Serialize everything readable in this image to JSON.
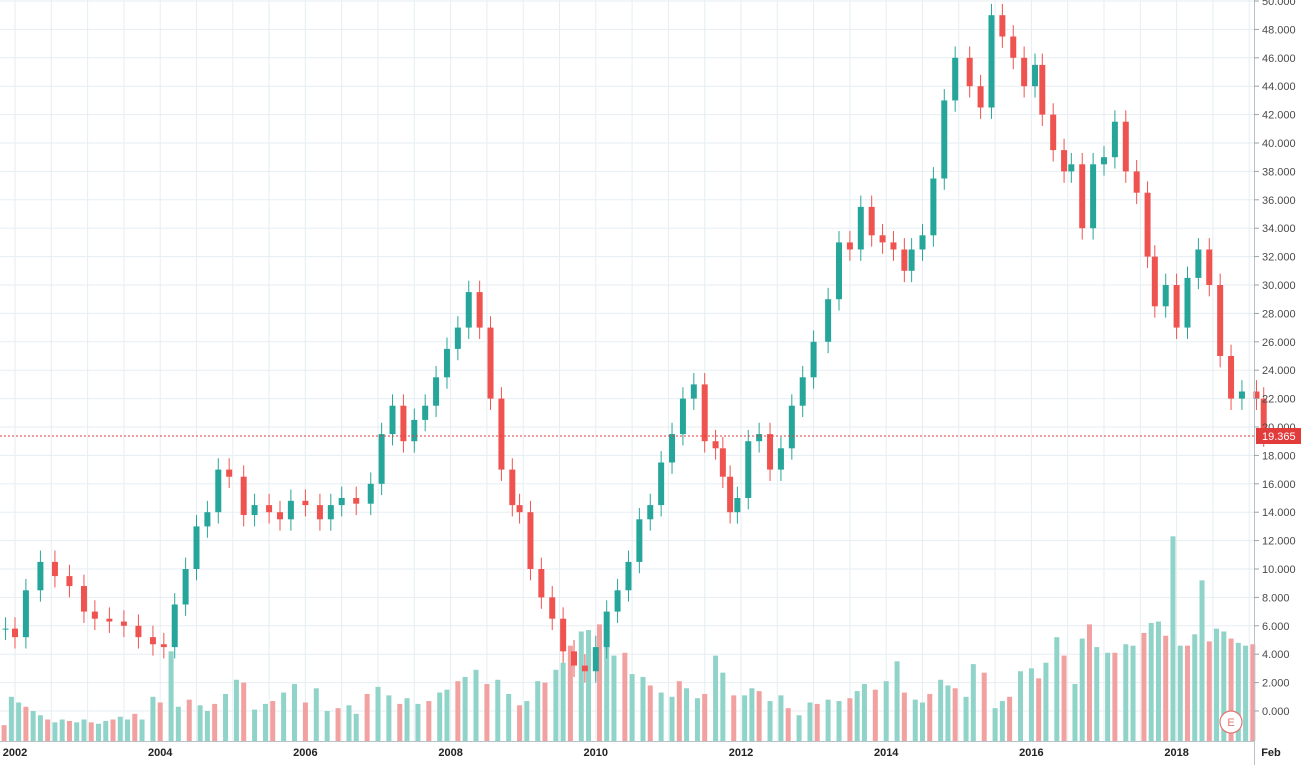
{
  "chart_data": {
    "type": "candlestick",
    "title": "",
    "interval": "monthly",
    "colors": {
      "up": "#26a69a",
      "down": "#ef5350",
      "up_volume": "#8fd3c9",
      "down_volume": "#f1a1a0",
      "grid": "#e6eef3",
      "last_price_line": "#e23b3b"
    },
    "grid": true,
    "price_axis": {
      "side": "right",
      "range": [
        0,
        50
      ],
      "ticks": [
        "0.000",
        "2.000",
        "4.000",
        "6.000",
        "8.000",
        "10.000",
        "12.000",
        "14.000",
        "16.000",
        "18.000",
        "20.000",
        "22.000",
        "24.000",
        "26.000",
        "28.000",
        "30.000",
        "32.000",
        "34.000",
        "36.000",
        "38.000",
        "40.000",
        "42.000",
        "44.000",
        "46.000",
        "48.000",
        "50.000"
      ]
    },
    "time_axis": {
      "ticks": [
        "2002",
        "2004",
        "2006",
        "2008",
        "2010",
        "2012",
        "2014",
        "2016",
        "2018",
        "Feb"
      ]
    },
    "last_price": "19.365",
    "event_marker": "E",
    "volume_overlay": true,
    "price_series": [
      [
        2001.87,
        5.8
      ],
      [
        2002.0,
        5.2
      ],
      [
        2002.15,
        8.5
      ],
      [
        2002.35,
        10.5
      ],
      [
        2002.55,
        9.5
      ],
      [
        2002.75,
        8.8
      ],
      [
        2002.95,
        7.0
      ],
      [
        2003.1,
        6.5
      ],
      [
        2003.3,
        6.3
      ],
      [
        2003.5,
        6.0
      ],
      [
        2003.7,
        5.2
      ],
      [
        2003.9,
        4.7
      ],
      [
        2004.05,
        4.5
      ],
      [
        2004.2,
        7.5
      ],
      [
        2004.35,
        10.0
      ],
      [
        2004.5,
        13.0
      ],
      [
        2004.65,
        14.0
      ],
      [
        2004.8,
        17.0
      ],
      [
        2004.95,
        16.5
      ],
      [
        2005.15,
        13.8
      ],
      [
        2005.3,
        14.5
      ],
      [
        2005.5,
        14.0
      ],
      [
        2005.65,
        13.5
      ],
      [
        2005.8,
        14.8
      ],
      [
        2006.0,
        14.5
      ],
      [
        2006.2,
        13.5
      ],
      [
        2006.35,
        14.5
      ],
      [
        2006.5,
        15.0
      ],
      [
        2006.7,
        14.6
      ],
      [
        2006.9,
        16.0
      ],
      [
        2007.05,
        19.5
      ],
      [
        2007.2,
        21.5
      ],
      [
        2007.35,
        19.0
      ],
      [
        2007.5,
        20.5
      ],
      [
        2007.65,
        21.5
      ],
      [
        2007.8,
        23.5
      ],
      [
        2007.95,
        25.5
      ],
      [
        2008.1,
        27.0
      ],
      [
        2008.25,
        29.5
      ],
      [
        2008.4,
        27.0
      ],
      [
        2008.55,
        22.0
      ],
      [
        2008.7,
        17.0
      ],
      [
        2008.85,
        14.5
      ],
      [
        2008.95,
        14.0
      ],
      [
        2009.1,
        10.0
      ],
      [
        2009.25,
        8.0
      ],
      [
        2009.4,
        6.5
      ],
      [
        2009.55,
        4.2
      ],
      [
        2009.7,
        3.2
      ],
      [
        2009.85,
        2.8
      ],
      [
        2010.0,
        4.5
      ],
      [
        2010.15,
        7.0
      ],
      [
        2010.3,
        8.5
      ],
      [
        2010.45,
        10.5
      ],
      [
        2010.6,
        13.5
      ],
      [
        2010.75,
        14.5
      ],
      [
        2010.9,
        17.5
      ],
      [
        2011.05,
        19.5
      ],
      [
        2011.2,
        22.0
      ],
      [
        2011.35,
        23.0
      ],
      [
        2011.5,
        19.0
      ],
      [
        2011.65,
        18.5
      ],
      [
        2011.75,
        16.5
      ],
      [
        2011.85,
        14.0
      ],
      [
        2011.95,
        15.0
      ],
      [
        2012.1,
        19.0
      ],
      [
        2012.25,
        19.5
      ],
      [
        2012.4,
        17.0
      ],
      [
        2012.55,
        18.5
      ],
      [
        2012.7,
        21.5
      ],
      [
        2012.85,
        23.5
      ],
      [
        2013.0,
        26.0
      ],
      [
        2013.2,
        29.0
      ],
      [
        2013.35,
        33.0
      ],
      [
        2013.5,
        32.5
      ],
      [
        2013.65,
        35.5
      ],
      [
        2013.8,
        33.5
      ],
      [
        2013.95,
        33.0
      ],
      [
        2014.1,
        32.5
      ],
      [
        2014.25,
        31.0
      ],
      [
        2014.35,
        32.5
      ],
      [
        2014.5,
        33.5
      ],
      [
        2014.65,
        37.5
      ],
      [
        2014.8,
        43.0
      ],
      [
        2014.95,
        46.0
      ],
      [
        2015.15,
        44.0
      ],
      [
        2015.3,
        42.5
      ],
      [
        2015.45,
        49.0
      ],
      [
        2015.6,
        47.5
      ],
      [
        2015.75,
        46.0
      ],
      [
        2015.9,
        44.0
      ],
      [
        2016.05,
        45.5
      ],
      [
        2016.15,
        42.0
      ],
      [
        2016.3,
        39.5
      ],
      [
        2016.45,
        38.0
      ],
      [
        2016.55,
        38.5
      ],
      [
        2016.7,
        34.0
      ],
      [
        2016.85,
        38.5
      ],
      [
        2017.0,
        39.0
      ],
      [
        2017.15,
        41.5
      ],
      [
        2017.3,
        38.0
      ],
      [
        2017.45,
        36.5
      ],
      [
        2017.6,
        32.0
      ],
      [
        2017.7,
        28.5
      ],
      [
        2017.85,
        30.0
      ],
      [
        2018.0,
        27.0
      ],
      [
        2018.15,
        30.5
      ],
      [
        2018.3,
        32.5
      ],
      [
        2018.45,
        30.0
      ],
      [
        2018.6,
        25.0
      ],
      [
        2018.75,
        22.0
      ],
      [
        2018.9,
        22.5
      ],
      [
        2019.1,
        22.0
      ],
      [
        2019.2,
        19.4
      ]
    ],
    "volume_series": [
      [
        2001.85,
        0.2
      ],
      [
        2001.95,
        2.2
      ],
      [
        2002.05,
        1.8
      ],
      [
        2002.15,
        1.5
      ],
      [
        2002.25,
        1.2
      ],
      [
        2002.35,
        0.9
      ],
      [
        2002.45,
        0.6
      ],
      [
        2002.55,
        0.4
      ],
      [
        2002.65,
        0.6
      ],
      [
        2002.75,
        0.5
      ],
      [
        2002.85,
        0.4
      ],
      [
        2002.95,
        0.6
      ],
      [
        2003.05,
        0.4
      ],
      [
        2003.15,
        0.3
      ],
      [
        2003.25,
        0.5
      ],
      [
        2003.35,
        0.6
      ],
      [
        2003.45,
        0.8
      ],
      [
        2003.55,
        0.6
      ],
      [
        2003.65,
        1.0
      ],
      [
        2003.75,
        0.6
      ],
      [
        2003.9,
        2.2
      ],
      [
        2004.0,
        1.8
      ],
      [
        2004.15,
        5.4
      ],
      [
        2004.25,
        1.5
      ],
      [
        2004.4,
        2.0
      ],
      [
        2004.55,
        1.6
      ],
      [
        2004.65,
        1.2
      ],
      [
        2004.75,
        1.7
      ],
      [
        2004.9,
        2.4
      ],
      [
        2005.05,
        3.4
      ],
      [
        2005.15,
        3.2
      ],
      [
        2005.3,
        1.3
      ],
      [
        2005.45,
        1.7
      ],
      [
        2005.55,
        1.9
      ],
      [
        2005.7,
        2.5
      ],
      [
        2005.85,
        3.1
      ],
      [
        2006.0,
        1.8
      ],
      [
        2006.15,
        2.8
      ],
      [
        2006.3,
        1.2
      ],
      [
        2006.45,
        1.4
      ],
      [
        2006.6,
        1.6
      ],
      [
        2006.7,
        1.0
      ],
      [
        2006.85,
        2.4
      ],
      [
        2007.0,
        2.9
      ],
      [
        2007.15,
        2.3
      ],
      [
        2007.3,
        1.7
      ],
      [
        2007.4,
        2.1
      ],
      [
        2007.55,
        1.7
      ],
      [
        2007.7,
        1.9
      ],
      [
        2007.85,
        2.5
      ],
      [
        2007.95,
        2.7
      ],
      [
        2008.1,
        3.3
      ],
      [
        2008.2,
        3.6
      ],
      [
        2008.35,
        4.1
      ],
      [
        2008.5,
        3.1
      ],
      [
        2008.65,
        3.4
      ],
      [
        2008.8,
        2.4
      ],
      [
        2008.95,
        1.6
      ],
      [
        2009.05,
        1.9
      ],
      [
        2009.2,
        3.3
      ],
      [
        2009.3,
        3.2
      ],
      [
        2009.45,
        4.1
      ],
      [
        2009.55,
        4.6
      ],
      [
        2009.65,
        5.8
      ],
      [
        2009.8,
        6.8
      ],
      [
        2009.9,
        6.9
      ],
      [
        2010.05,
        7.3
      ],
      [
        2010.15,
        6.1
      ],
      [
        2010.25,
        5.1
      ],
      [
        2010.4,
        5.3
      ],
      [
        2010.5,
        3.8
      ],
      [
        2010.65,
        3.6
      ],
      [
        2010.75,
        3.0
      ],
      [
        2010.9,
        2.5
      ],
      [
        2011.05,
        2.2
      ],
      [
        2011.15,
        3.3
      ],
      [
        2011.25,
        2.8
      ],
      [
        2011.4,
        2.1
      ],
      [
        2011.5,
        2.4
      ],
      [
        2011.65,
        5.1
      ],
      [
        2011.75,
        3.9
      ],
      [
        2011.9,
        2.3
      ],
      [
        2012.05,
        2.3
      ],
      [
        2012.15,
        2.8
      ],
      [
        2012.25,
        2.6
      ],
      [
        2012.4,
        1.9
      ],
      [
        2012.55,
        2.3
      ],
      [
        2012.65,
        1.4
      ],
      [
        2012.8,
        0.9
      ],
      [
        2012.95,
        1.8
      ],
      [
        2013.05,
        1.7
      ],
      [
        2013.2,
        2.0
      ],
      [
        2013.35,
        1.9
      ],
      [
        2013.5,
        2.1
      ],
      [
        2013.6,
        2.6
      ],
      [
        2013.7,
        3.1
      ],
      [
        2013.85,
        2.7
      ],
      [
        2014.0,
        3.3
      ],
      [
        2014.15,
        4.7
      ],
      [
        2014.25,
        2.5
      ],
      [
        2014.4,
        2.0
      ],
      [
        2014.5,
        1.8
      ],
      [
        2014.6,
        2.4
      ],
      [
        2014.75,
        3.4
      ],
      [
        2014.85,
        3.0
      ],
      [
        2014.95,
        2.8
      ],
      [
        2015.1,
        2.2
      ],
      [
        2015.2,
        4.5
      ],
      [
        2015.35,
        3.9
      ],
      [
        2015.5,
        1.4
      ],
      [
        2015.6,
        1.9
      ],
      [
        2015.7,
        2.2
      ],
      [
        2015.85,
        4.0
      ],
      [
        2016.0,
        4.2
      ],
      [
        2016.1,
        3.5
      ],
      [
        2016.2,
        4.6
      ],
      [
        2016.35,
        6.4
      ],
      [
        2016.45,
        5.1
      ],
      [
        2016.6,
        3.1
      ],
      [
        2016.7,
        6.3
      ],
      [
        2016.8,
        7.3
      ],
      [
        2016.9,
        5.7
      ],
      [
        2017.05,
        5.3
      ],
      [
        2017.15,
        5.3
      ],
      [
        2017.3,
        5.9
      ],
      [
        2017.4,
        5.8
      ],
      [
        2017.55,
        6.7
      ],
      [
        2017.65,
        7.4
      ],
      [
        2017.75,
        7.5
      ],
      [
        2017.85,
        6.5
      ],
      [
        2017.95,
        13.5
      ],
      [
        2018.05,
        5.8
      ],
      [
        2018.15,
        5.8
      ],
      [
        2018.25,
        6.6
      ],
      [
        2018.35,
        10.4
      ],
      [
        2018.45,
        6.1
      ],
      [
        2018.55,
        7.0
      ],
      [
        2018.65,
        6.8
      ],
      [
        2018.75,
        6.3
      ],
      [
        2018.85,
        6.0
      ],
      [
        2018.95,
        5.8
      ],
      [
        2019.05,
        5.9
      ]
    ]
  }
}
